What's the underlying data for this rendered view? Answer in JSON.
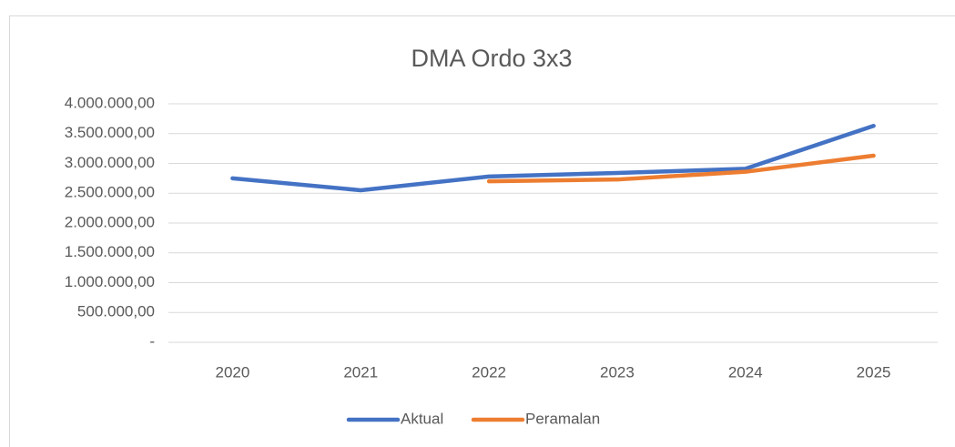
{
  "chart_data": {
    "type": "line",
    "title": "DMA Ordo 3x3",
    "categories": [
      "2020",
      "2021",
      "2022",
      "2023",
      "2024",
      "2025"
    ],
    "series": [
      {
        "name": "Aktual",
        "color": "#4472c4",
        "values": [
          2750000,
          2550000,
          2780000,
          2840000,
          2910000,
          3630000
        ]
      },
      {
        "name": "Peramalan",
        "color": "#ed7d31",
        "values": [
          null,
          null,
          2700000,
          2730000,
          2860000,
          3130000
        ]
      }
    ],
    "ylim": [
      0,
      4000000
    ],
    "yticks": [
      {
        "value": 0,
        "label": "-"
      },
      {
        "value": 500000,
        "label": "500.000,00"
      },
      {
        "value": 1000000,
        "label": "1.000.000,00"
      },
      {
        "value": 1500000,
        "label": "1.500.000,00"
      },
      {
        "value": 2000000,
        "label": "2.000.000,00"
      },
      {
        "value": 2500000,
        "label": "2.500.000,00"
      },
      {
        "value": 3000000,
        "label": "3.000.000,00"
      },
      {
        "value": 3500000,
        "label": "3.500.000,00"
      },
      {
        "value": 4000000,
        "label": "4.000.000,00"
      }
    ],
    "grid": true,
    "legend": "bottom"
  }
}
